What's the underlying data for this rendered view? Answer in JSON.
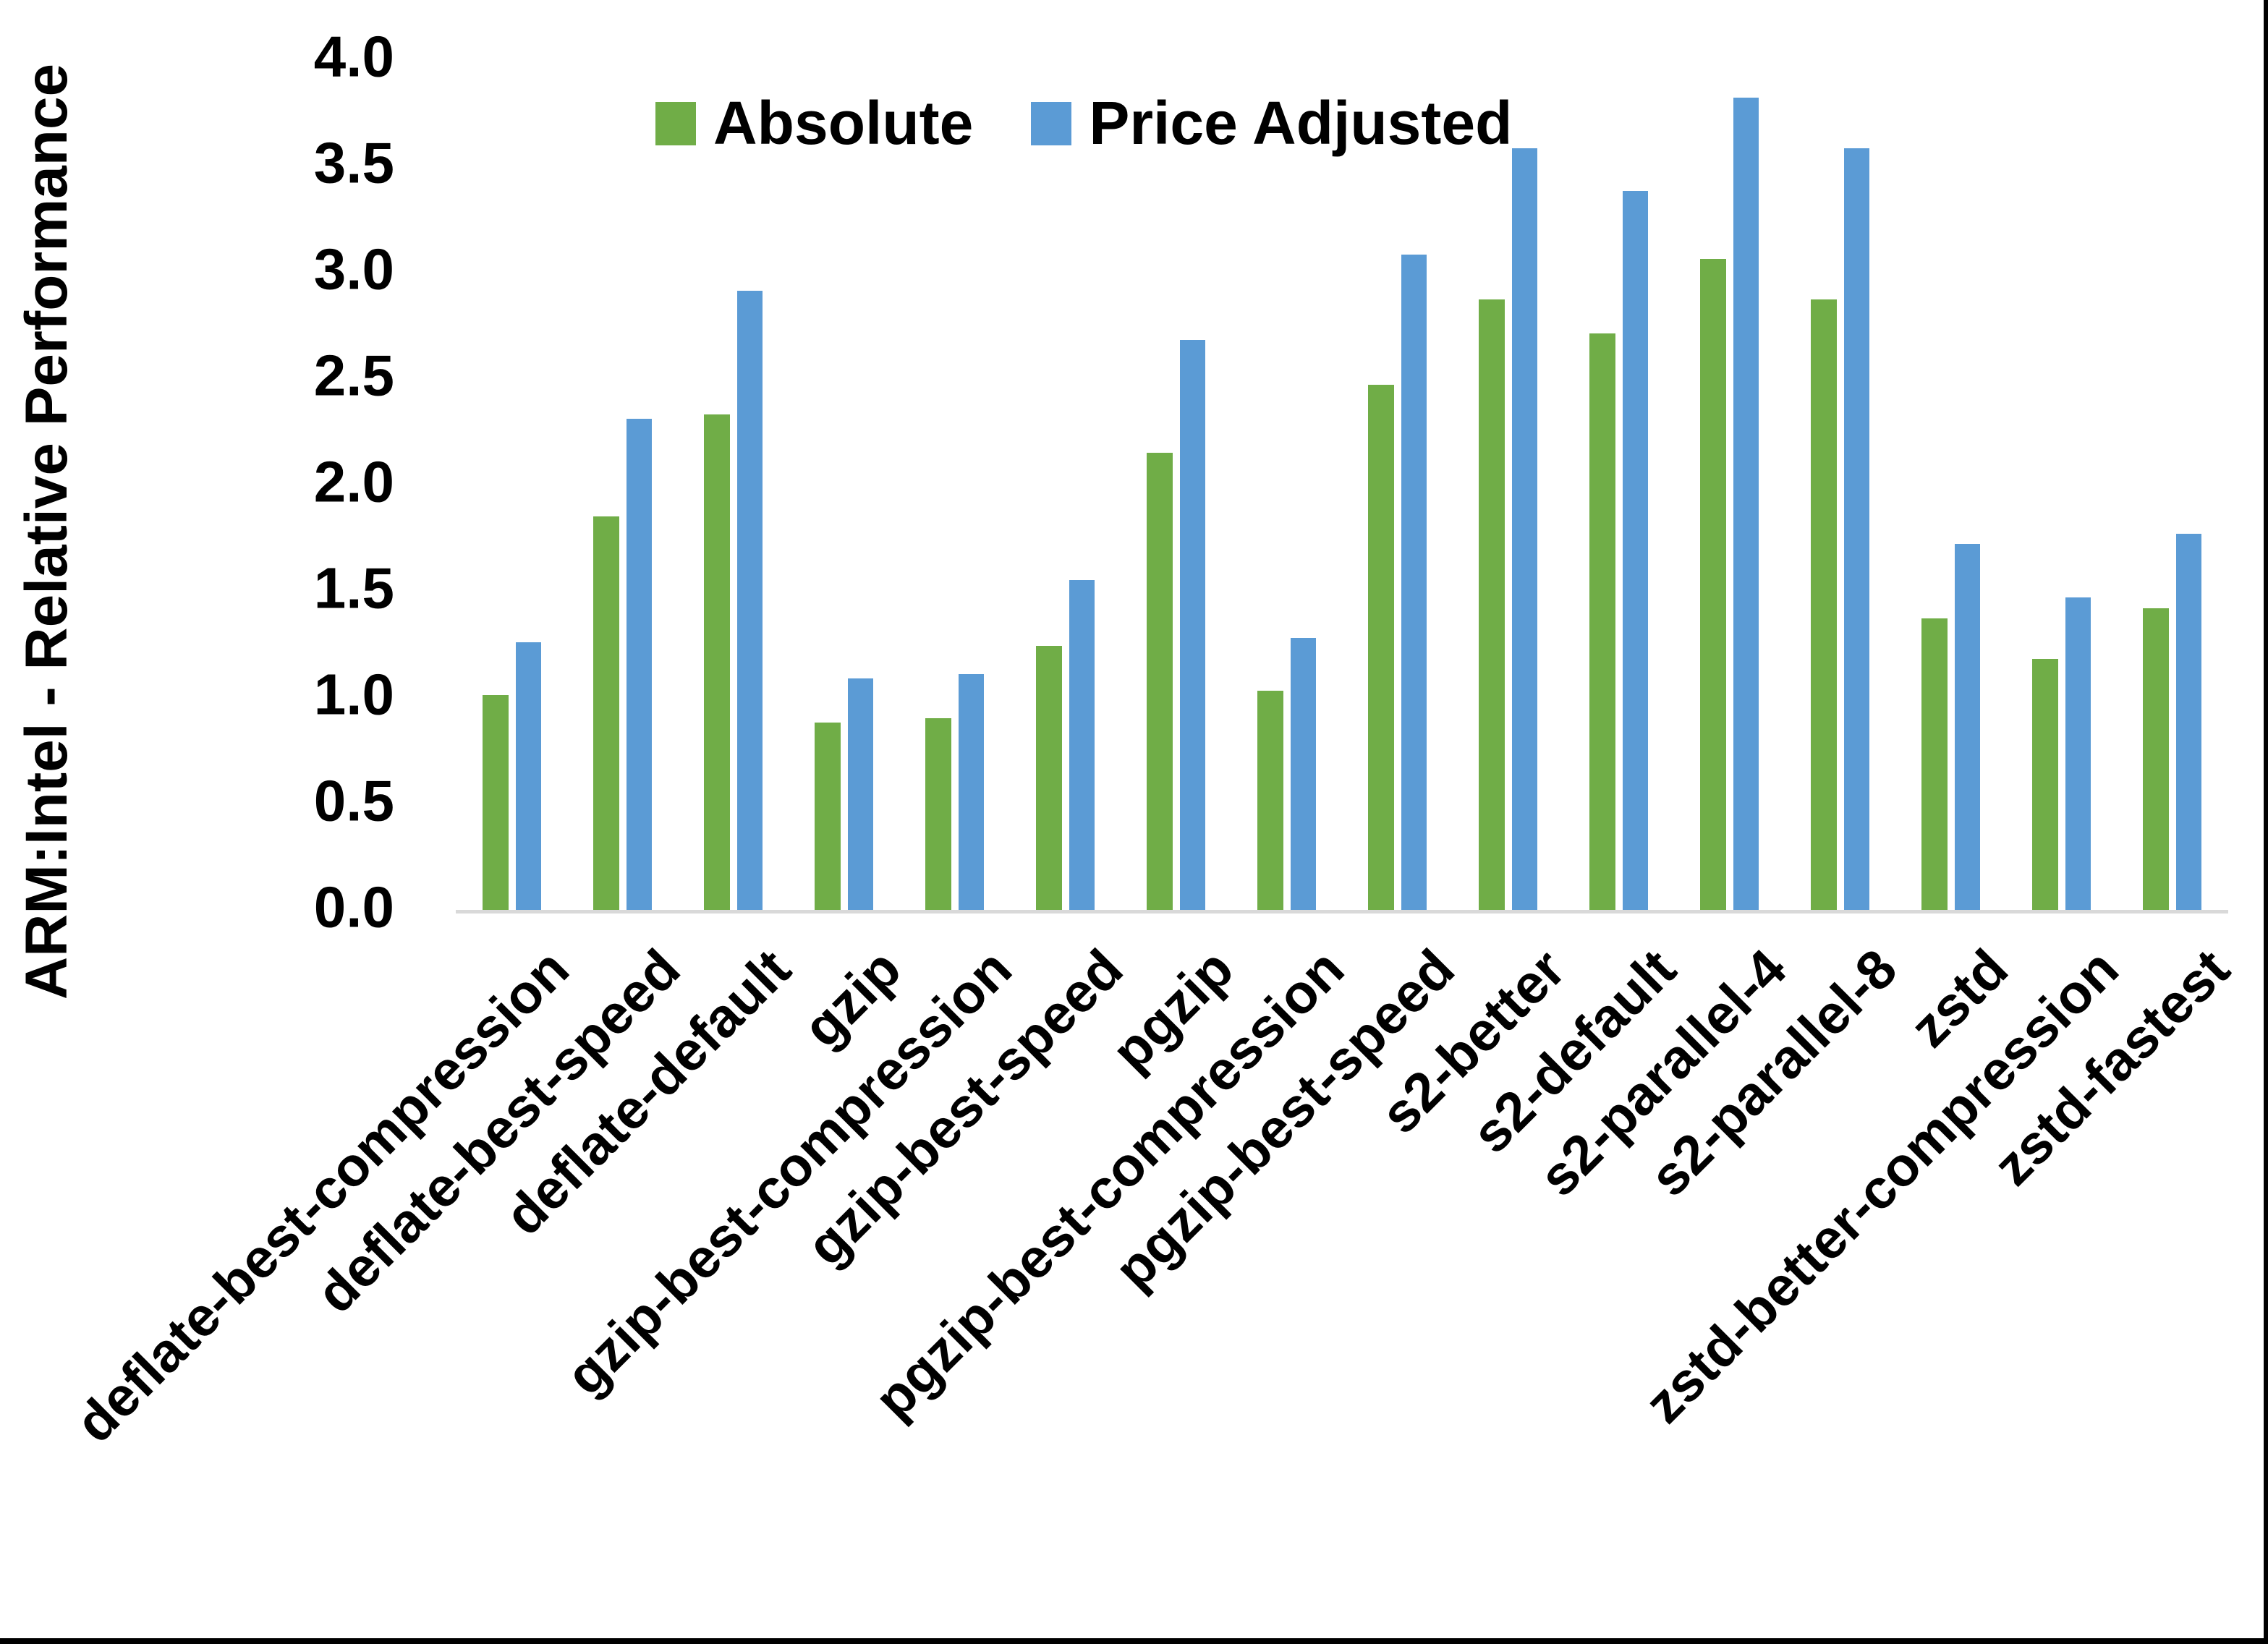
{
  "chart_data": {
    "type": "bar",
    "title": "",
    "xlabel": "",
    "ylabel": "ARM:Intel - Relative Performance",
    "ylim": [
      0.0,
      4.0
    ],
    "ytick_step": 0.5,
    "yticks": [
      "4.0",
      "3.5",
      "3.0",
      "2.5",
      "2.0",
      "1.5",
      "1.0",
      "0.5",
      "0.0"
    ],
    "grid": false,
    "legend_position": "top-center",
    "categories": [
      "deflate-best-compression",
      "deflate-best-speed",
      "deflate-default",
      "gzip",
      "gzip-best-compression",
      "gzip-best-speed",
      "pgzip",
      "pgzip-best-compression",
      "pgzip-best-speed",
      "s2-better",
      "s2-default",
      "s2-parallel-4",
      "s2-parallel-8",
      "zstd",
      "zstd-better-compression",
      "zstd-fastest"
    ],
    "series": [
      {
        "name": "Absolute",
        "color": "#70AD47",
        "values": [
          1.01,
          1.85,
          2.33,
          0.88,
          0.9,
          1.24,
          2.15,
          1.03,
          2.47,
          2.87,
          2.71,
          3.06,
          2.87,
          1.37,
          1.18,
          1.42
        ]
      },
      {
        "name": "Price Adjusted",
        "color": "#5B9BD5",
        "values": [
          1.26,
          2.31,
          2.91,
          1.09,
          1.11,
          1.55,
          2.68,
          1.28,
          3.08,
          3.58,
          3.38,
          3.82,
          3.58,
          1.72,
          1.47,
          1.77
        ]
      }
    ],
    "axis_line_color": "#D9D9D9",
    "text_color": "#000000"
  }
}
